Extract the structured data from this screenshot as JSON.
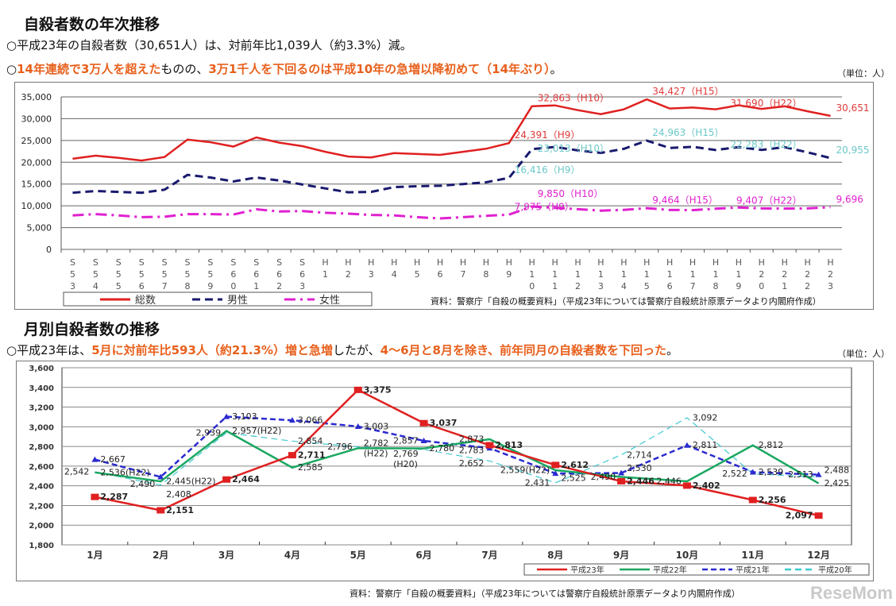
{
  "section1": {
    "title": "自殺者数の年次推移",
    "bullet1": "○平成23年の自殺者数（30,651人）は、対前年比1,039人（約3.3%）減。",
    "bullet2_parts": [
      "○",
      "14年連続で3万人を超えた",
      "ものの、",
      "3万1千人を下回るのは平成10年の急増以降初めて（14年ぶり）",
      "。"
    ],
    "unit": "（単位：人）",
    "source": "資料：警察庁「自殺の概要資料」（平成23年については警察庁自殺統計原票データより内閣府作成）"
  },
  "section2": {
    "title": "月別自殺者数の推移",
    "bullet_parts": [
      "○平成23年は、",
      "5月に対前年比593人（約21.3%）増と急増",
      "したが、",
      "4～6月と8月を除き、前年同月の自殺者数を下回った",
      "。"
    ],
    "unit": "（単位：人）",
    "source": "資料：警察庁「自殺の概要資料」（平成23年については警察庁自殺統計原票データより内閣府作成）"
  },
  "watermark": "ReseMom",
  "chart_data": [
    {
      "type": "line",
      "ylim": [
        0,
        35000
      ],
      "yticks": [
        "0",
        "5,000",
        "10,000",
        "15,000",
        "20,000",
        "25,000",
        "30,000",
        "35,000"
      ],
      "grid": true,
      "legend": "bottom-left",
      "categories": [
        "S53",
        "S54",
        "S55",
        "S56",
        "S57",
        "S58",
        "S59",
        "S60",
        "S61",
        "S62",
        "S63",
        "H1",
        "H2",
        "H3",
        "H4",
        "H5",
        "H6",
        "H7",
        "H8",
        "H9",
        "H10",
        "H11",
        "H12",
        "H13",
        "H14",
        "H15",
        "H16",
        "H17",
        "H18",
        "H19",
        "H20",
        "H21",
        "H22",
        "H23"
      ],
      "series": [
        {
          "name": "総数",
          "color": "#e02020",
          "style": "solid",
          "values": [
            20800,
            21500,
            21000,
            20400,
            21200,
            25200,
            24600,
            23600,
            25700,
            24500,
            23700,
            22400,
            21300,
            21100,
            22100,
            21900,
            21700,
            22400,
            23100,
            24391,
            32863,
            33048,
            31957,
            31042,
            32143,
            34427,
            32325,
            32552,
            32155,
            33093,
            32249,
            32845,
            31690,
            30651
          ]
        },
        {
          "name": "男性",
          "color": "#1a1a6e",
          "style": "dash",
          "values": [
            13000,
            13400,
            13200,
            13000,
            13700,
            17100,
            16500,
            15600,
            16500,
            15800,
            14900,
            14000,
            13100,
            13200,
            14300,
            14500,
            14600,
            15000,
            15400,
            16416,
            23013,
            23512,
            22727,
            22144,
            23080,
            24963,
            23272,
            23540,
            22813,
            23478,
            22831,
            23472,
            22283,
            20955
          ]
        },
        {
          "name": "女性",
          "color": "#e020d0",
          "style": "dashdot",
          "values": [
            7800,
            8100,
            7800,
            7400,
            7500,
            8100,
            8100,
            8000,
            9200,
            8700,
            8800,
            8400,
            8200,
            7900,
            7800,
            7400,
            7100,
            7400,
            7700,
            7975,
            9850,
            9536,
            9230,
            8898,
            9063,
            9464,
            9053,
            9012,
            9342,
            9615,
            9418,
            9373,
            9407,
            9696
          ]
        }
      ],
      "annotations": [
        {
          "series": 0,
          "index": 19,
          "text": "24,391（H9）"
        },
        {
          "series": 0,
          "index": 20,
          "text": "32,863（H10）"
        },
        {
          "series": 0,
          "index": 25,
          "text": "34,427（H15）"
        },
        {
          "series": 0,
          "index": 32,
          "text": "31,690（H22）"
        },
        {
          "series": 0,
          "index": 33,
          "text": "30,651"
        },
        {
          "series": 1,
          "index": 19,
          "text": "16,416（H9）"
        },
        {
          "series": 1,
          "index": 20,
          "text": "23,013（H10）"
        },
        {
          "series": 1,
          "index": 25,
          "text": "24,963（H15）"
        },
        {
          "series": 1,
          "index": 32,
          "text": "22,283（H22）"
        },
        {
          "series": 1,
          "index": 33,
          "text": "20,955"
        },
        {
          "series": 2,
          "index": 19,
          "text": "7,975（H9）"
        },
        {
          "series": 2,
          "index": 20,
          "text": "9,850（H10）"
        },
        {
          "series": 2,
          "index": 25,
          "text": "9,464（H15）"
        },
        {
          "series": 2,
          "index": 32,
          "text": "9,407（H22）"
        },
        {
          "series": 2,
          "index": 33,
          "text": "9,696"
        }
      ]
    },
    {
      "type": "line",
      "ylim": [
        1800,
        3600
      ],
      "yticks": [
        "1,800",
        "2,000",
        "2,200",
        "2,400",
        "2,600",
        "2,800",
        "3,000",
        "3,200",
        "3,400",
        "3,600"
      ],
      "grid": true,
      "legend": "bottom-right",
      "categories": [
        "1月",
        "2月",
        "3月",
        "4月",
        "5月",
        "6月",
        "7月",
        "8月",
        "9月",
        "10月",
        "11月",
        "12月"
      ],
      "series": [
        {
          "name": "平成23年",
          "color": "#e02020",
          "style": "solid-square",
          "values": [
            2287,
            2151,
            2464,
            2711,
            3375,
            3037,
            2813,
            2612,
            2446,
            2402,
            2256,
            2097
          ],
          "labels": [
            "2,287",
            "2,151",
            "2,464",
            "2,711",
            "3,375",
            "3,037",
            "2,813",
            "2,612",
            "2,446",
            "2,402",
            "2,256",
            "2,097"
          ]
        },
        {
          "name": "平成22年",
          "color": "#1aa860",
          "style": "solid",
          "values": [
            2536,
            2445,
            2957,
            2585,
            2782,
            2780,
            2873,
            2559,
            2490,
            2446,
            2812,
            2425
          ],
          "labels": [
            "2,536(H22)",
            "2,445(H22)",
            "2,957(H22)",
            "2,585",
            "2,782\n(H22)",
            "2,780",
            "2,873",
            "2,559(H22)",
            "2,490",
            "2,446",
            "2,812",
            "2,425"
          ]
        },
        {
          "name": "平成21年",
          "color": "#2a2ad0",
          "style": "dash-triangle",
          "values": [
            2667,
            2490,
            3103,
            3066,
            3003,
            2857,
            2783,
            2525,
            2530,
            2811,
            2539,
            2513
          ],
          "labels": [
            "2,667",
            "2,490",
            "3,103",
            "3,066",
            "3,003",
            "2,857",
            "2,783",
            "2,525",
            "2,530",
            "2,811",
            "2,539",
            "2,513"
          ]
        },
        {
          "name": "平成20年",
          "color": "#40c8d0",
          "style": "thin-dash",
          "values": [
            2542,
            2408,
            2939,
            2854,
            2796,
            2769,
            2652,
            2431,
            2714,
            3092,
            2522,
            2488
          ],
          "labels": [
            "2,542",
            "2,408",
            "2,939",
            "2,854",
            "2,796",
            "2,769\n(H20)",
            "2,652",
            "2,431",
            "2,714",
            "3,092",
            "2,522",
            "2,488"
          ]
        }
      ]
    }
  ]
}
